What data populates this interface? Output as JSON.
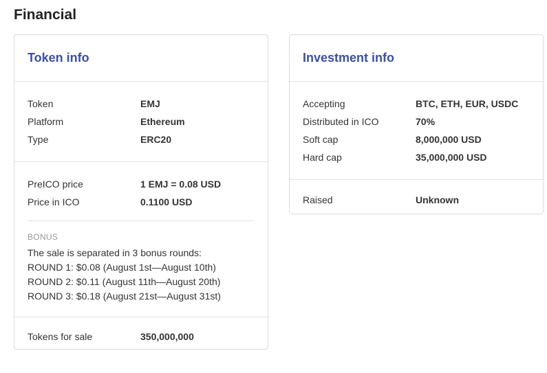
{
  "page": {
    "title": "Financial"
  },
  "token_info": {
    "title": "Token info",
    "basic": [
      {
        "label": "Token",
        "value": "EMJ"
      },
      {
        "label": "Platform",
        "value": "Ethereum"
      },
      {
        "label": "Type",
        "value": "ERC20"
      }
    ],
    "prices": [
      {
        "label": "PreICO price",
        "value": "1 EMJ = 0.08 USD"
      },
      {
        "label": "Price in ICO",
        "value": "0.1100 USD"
      }
    ],
    "bonus": {
      "title": "BONUS",
      "lines": [
        "The sale is separated in 3 bonus rounds:",
        "ROUND 1: $0.08 (August 1st—August 10th)",
        "ROUND 2: $0.11 (August 11th—August 20th)",
        "ROUND 3: $0.18 (August 21st—August 31st)"
      ]
    },
    "sale": {
      "label": "Tokens for sale",
      "value": "350,000,000"
    }
  },
  "investment_info": {
    "title": "Investment info",
    "details": [
      {
        "label": "Accepting",
        "value": "BTC, ETH, EUR, USDC"
      },
      {
        "label": "Distributed in ICO",
        "value": "70%"
      },
      {
        "label": "Soft cap",
        "value": "8,000,000 USD"
      },
      {
        "label": "Hard cap",
        "value": "35,000,000 USD"
      }
    ],
    "raised": {
      "label": "Raised",
      "value": "Unknown"
    }
  },
  "colors": {
    "accent": "#3d4ea6",
    "border": "#dcdcdc",
    "muted": "#999999"
  }
}
